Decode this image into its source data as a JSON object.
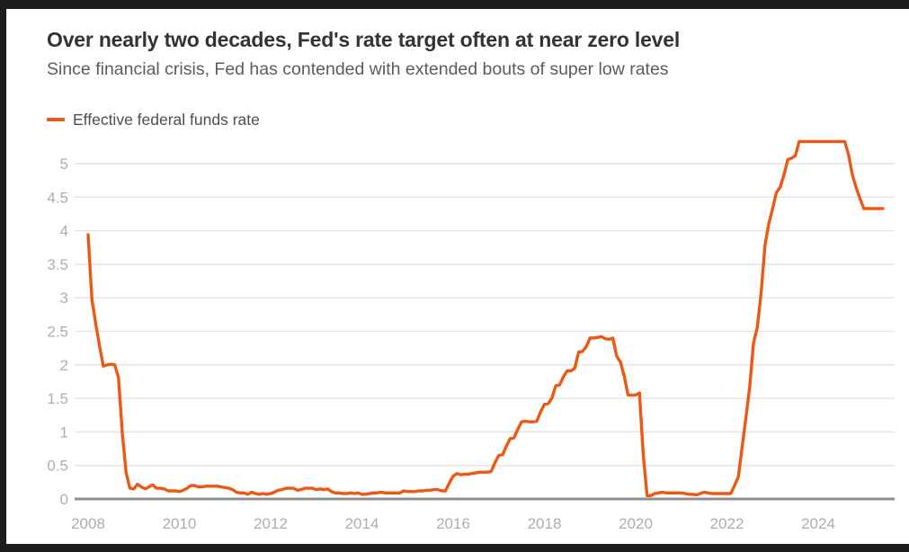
{
  "colors": {
    "frame": "#1d1d1d",
    "card_background": "#ffffff",
    "title": "#333333",
    "subtitle": "#5c5c5c",
    "tick_label": "#adadad",
    "grid_line": "#e4e4e4",
    "zero_axis": "#8f8f8f",
    "line": "#ea5a15"
  },
  "chart_data": {
    "type": "line",
    "title": "Over nearly two decades, Fed's rate target often at near zero level",
    "subtitle": "Since financial crisis, Fed has contended with extended bouts of super low rates",
    "unit": "percent",
    "frequency": "monthly",
    "grid": "horizontal",
    "legend_position": "top-left",
    "x_tick_labels": [
      "2008",
      "2010",
      "2012",
      "2014",
      "2016",
      "2018",
      "2020",
      "2022",
      "2024"
    ],
    "y_ticks": [
      0,
      0.5,
      1,
      1.5,
      2,
      2.5,
      3,
      3.5,
      4,
      4.5,
      5
    ],
    "ylim": [
      0,
      5.45
    ],
    "x_range_years": [
      2007.7,
      2025.7
    ],
    "series": [
      {
        "name": "Effective federal funds rate",
        "color": "#ea5a15",
        "start": "2008-01",
        "values": [
          3.94,
          2.98,
          2.61,
          2.28,
          1.98,
          2.0,
          2.01,
          2.0,
          1.81,
          0.97,
          0.39,
          0.16,
          0.15,
          0.22,
          0.18,
          0.15,
          0.18,
          0.21,
          0.16,
          0.16,
          0.15,
          0.12,
          0.12,
          0.12,
          0.11,
          0.13,
          0.16,
          0.2,
          0.2,
          0.18,
          0.18,
          0.19,
          0.19,
          0.19,
          0.19,
          0.18,
          0.17,
          0.16,
          0.14,
          0.1,
          0.09,
          0.09,
          0.07,
          0.1,
          0.08,
          0.07,
          0.08,
          0.07,
          0.08,
          0.1,
          0.13,
          0.14,
          0.16,
          0.16,
          0.16,
          0.13,
          0.14,
          0.16,
          0.16,
          0.16,
          0.14,
          0.15,
          0.14,
          0.15,
          0.11,
          0.09,
          0.09,
          0.08,
          0.08,
          0.09,
          0.08,
          0.09,
          0.07,
          0.07,
          0.08,
          0.09,
          0.09,
          0.1,
          0.09,
          0.09,
          0.09,
          0.09,
          0.09,
          0.12,
          0.11,
          0.11,
          0.11,
          0.12,
          0.12,
          0.13,
          0.13,
          0.14,
          0.14,
          0.12,
          0.12,
          0.24,
          0.34,
          0.38,
          0.36,
          0.37,
          0.37,
          0.38,
          0.39,
          0.4,
          0.4,
          0.4,
          0.41,
          0.54,
          0.65,
          0.66,
          0.79,
          0.9,
          0.91,
          1.04,
          1.15,
          1.16,
          1.15,
          1.15,
          1.16,
          1.3,
          1.41,
          1.42,
          1.51,
          1.69,
          1.7,
          1.82,
          1.91,
          1.91,
          1.95,
          2.19,
          2.2,
          2.27,
          2.4,
          2.4,
          2.41,
          2.42,
          2.39,
          2.38,
          2.4,
          2.13,
          2.04,
          1.83,
          1.55,
          1.55,
          1.55,
          1.58,
          0.65,
          0.05,
          0.05,
          0.08,
          0.09,
          0.1,
          0.09,
          0.09,
          0.09,
          0.09,
          0.09,
          0.08,
          0.07,
          0.07,
          0.06,
          0.08,
          0.1,
          0.09,
          0.08,
          0.08,
          0.08,
          0.08,
          0.08,
          0.08,
          0.2,
          0.33,
          0.77,
          1.21,
          1.68,
          2.33,
          2.56,
          3.08,
          3.78,
          4.1,
          4.33,
          4.57,
          4.65,
          4.83,
          5.06,
          5.08,
          5.12,
          5.33,
          5.33,
          5.33,
          5.33,
          5.33,
          5.33,
          5.33,
          5.33,
          5.33,
          5.33,
          5.33,
          5.33,
          5.33,
          5.13,
          4.83,
          4.64,
          4.48,
          4.33,
          4.33,
          4.33,
          4.33,
          4.33,
          4.33
        ]
      }
    ]
  }
}
